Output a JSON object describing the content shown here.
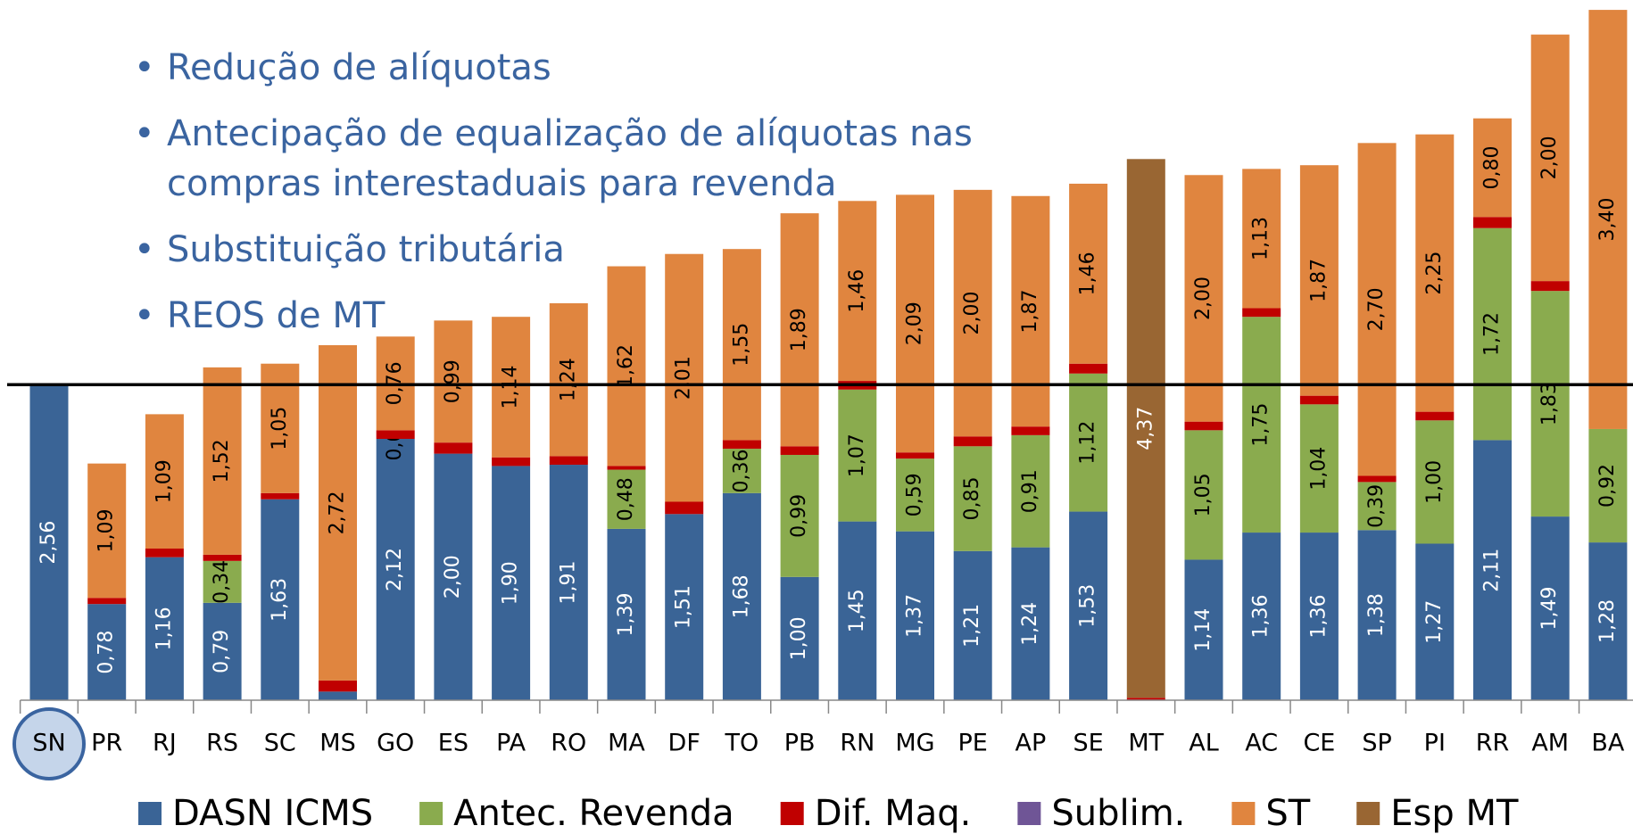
{
  "bullets": [
    "Redução de alíquotas",
    "Antecipação de equalização de alíquotas nas compras interestaduais para revenda",
    "Substituição tributária",
    "REOS de MT"
  ],
  "chart_data": {
    "type": "stacked_bar",
    "categories": [
      "SN",
      "PR",
      "RJ",
      "RS",
      "SC",
      "MS",
      "GO",
      "ES",
      "PA",
      "RO",
      "MA",
      "DF",
      "TO",
      "PB",
      "RN",
      "MG",
      "PE",
      "AP",
      "SE",
      "MT",
      "AL",
      "AC",
      "CE",
      "SP",
      "PI",
      "RR",
      "AM",
      "BA"
    ],
    "series": [
      {
        "name": "DASN ICMS",
        "color": "#3a6496",
        "values": [
          2.56,
          0.78,
          1.16,
          0.79,
          1.63,
          0.07,
          2.12,
          2.0,
          1.9,
          1.91,
          1.39,
          1.51,
          1.68,
          1.0,
          1.45,
          1.37,
          1.21,
          1.24,
          1.53,
          0,
          1.14,
          1.36,
          1.36,
          1.38,
          1.27,
          2.11,
          1.49,
          1.28
        ],
        "value_labels": [
          "2,56",
          "0,78",
          "1,16",
          "0,79",
          "1,63",
          null,
          "2,12",
          "2,00",
          "1,90",
          "1,91",
          "1,39",
          "1,51",
          "1,68",
          "1,00",
          "1,45",
          "1,37",
          "1,21",
          "1,24",
          "1,53",
          null,
          "1,14",
          "1,36",
          "1,36",
          "1,38",
          "1,27",
          "2,11",
          "1,49",
          "1,28"
        ]
      },
      {
        "name": "Antec. Revenda",
        "color": "#8aab4e",
        "values": [
          0,
          0,
          0,
          0.34,
          0,
          0,
          0,
          0,
          0,
          0,
          0.48,
          0,
          0.36,
          0.99,
          1.07,
          0.59,
          0.85,
          0.91,
          1.12,
          0,
          1.05,
          1.75,
          1.04,
          0.39,
          1.0,
          1.72,
          1.83,
          0.92
        ],
        "value_labels": [
          null,
          null,
          null,
          "0,34",
          null,
          null,
          "0,00",
          null,
          null,
          null,
          "0,48",
          null,
          "0,36",
          "0,99",
          "1,07",
          "0,59",
          "0,85",
          "0,91",
          "1,12",
          null,
          "1,05",
          "1,75",
          "1,04",
          "0,39",
          "1,00",
          "1,72",
          "1,83",
          "0,92"
        ]
      },
      {
        "name": "Dif. Maq.",
        "color": "#c00000",
        "values": [
          0,
          0.05,
          0.07,
          0.05,
          0.05,
          0.09,
          0.07,
          0.09,
          0.07,
          0.07,
          0.03,
          0.1,
          0.07,
          0.07,
          0.07,
          0.05,
          0.08,
          0.07,
          0.08,
          0.02,
          0.07,
          0.07,
          0.07,
          0.05,
          0.07,
          0.09,
          0.08,
          0
        ]
      },
      {
        "name": "Sublim.",
        "color": "#6f5596",
        "values": [
          0,
          0,
          0,
          0,
          0,
          0,
          0,
          0,
          0,
          0,
          0,
          0,
          0,
          0,
          0,
          0,
          0,
          0,
          0,
          0,
          0,
          0,
          0,
          0,
          0,
          0,
          0,
          0
        ]
      },
      {
        "name": "ST",
        "color": "#e0853f",
        "values": [
          0,
          1.09,
          1.09,
          1.52,
          1.05,
          2.72,
          0.76,
          0.99,
          1.14,
          1.24,
          1.62,
          2.01,
          1.55,
          1.89,
          1.46,
          2.09,
          2.0,
          1.87,
          1.46,
          0,
          2.0,
          1.13,
          1.87,
          2.7,
          2.25,
          0.8,
          2.0,
          3.4
        ],
        "value_labels": [
          null,
          "1,09",
          "1,09",
          "1,52",
          "1,05",
          "2,72",
          "0,76",
          "0,99",
          "1,14",
          "1,24",
          "1,62",
          "2,01",
          "1,55",
          "1,89",
          "1,46",
          "2,09",
          "2,00",
          "1,87",
          "1,46",
          null,
          "2,00",
          "1,13",
          "1,87",
          "2,70",
          "2,25",
          "0,80",
          "2,00",
          "3,40"
        ]
      },
      {
        "name": "Esp MT",
        "color": "#996633",
        "values": [
          0,
          0,
          0,
          0,
          0,
          0,
          0,
          0,
          0,
          0,
          0,
          0,
          0,
          0,
          0,
          0,
          0,
          0,
          0,
          4.37,
          0,
          0,
          0,
          0,
          0,
          0,
          0,
          0
        ],
        "value_labels": [
          null,
          null,
          null,
          null,
          null,
          null,
          null,
          null,
          null,
          null,
          null,
          null,
          null,
          null,
          null,
          null,
          null,
          null,
          null,
          "4,37",
          null,
          null,
          null,
          null,
          null,
          null,
          null,
          null
        ]
      }
    ]
  }
}
